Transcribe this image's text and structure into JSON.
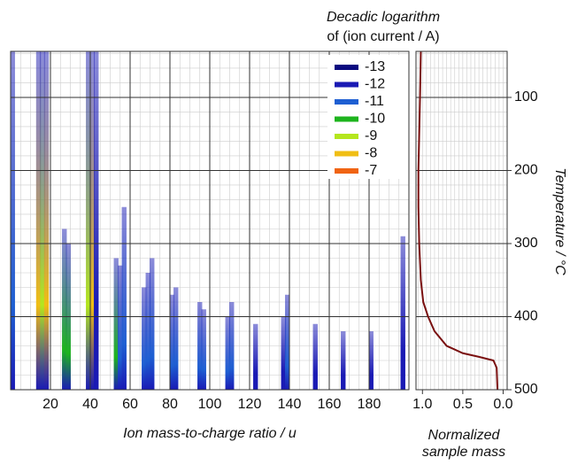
{
  "chart_data": [
    {
      "type": "heatmap",
      "title": [
        "Decadic logarithm",
        "of (ion current / A)"
      ],
      "x_label": "Ion mass-to-charge ratio / u",
      "y_label": "Temperature / °C",
      "xlim": [
        0,
        200
      ],
      "xticks": [
        20,
        40,
        60,
        80,
        100,
        120,
        140,
        160,
        180
      ],
      "ylim": [
        37,
        500
      ],
      "yticks": [
        100,
        200,
        300,
        400,
        500
      ],
      "grid": true,
      "legend": {
        "levels": [
          -13,
          -12,
          -11,
          -10,
          -9,
          -8,
          -7
        ],
        "colors": [
          "#0a0a80",
          "#1a1ab4",
          "#1e5fd2",
          "#1eb41e",
          "#b4e61e",
          "#f0be14",
          "#f06414"
        ]
      },
      "peaks": {
        "mass": [
          1,
          14,
          16,
          18,
          27,
          29,
          39,
          41,
          43,
          53,
          55,
          57,
          67,
          69,
          71,
          81,
          83,
          95,
          97,
          109,
          111,
          123,
          137,
          139,
          153,
          167,
          181,
          197
        ],
        "start": [
          37,
          37,
          37,
          37,
          280,
          300,
          37,
          37,
          37,
          320,
          330,
          250,
          360,
          340,
          320,
          370,
          360,
          380,
          390,
          400,
          380,
          410,
          400,
          370,
          410,
          420,
          420,
          290
        ],
        "level": [
          -11,
          -8,
          -9,
          -8,
          -10,
          -10,
          -9,
          -8,
          -12,
          -10,
          -11,
          -11,
          -11,
          -11,
          -11,
          -11,
          -11,
          -11,
          -11,
          -11,
          -11,
          -12,
          -12,
          -11,
          -12,
          -12,
          -12,
          -12
        ]
      }
    },
    {
      "type": "line",
      "x_label": [
        "Normalized",
        "sample mass"
      ],
      "xlim": [
        1.08,
        -0.05
      ],
      "xticks": [
        {
          "value": 1,
          "label": "1.0"
        },
        {
          "value": 0.5,
          "label": "0.5"
        },
        {
          "value": 0,
          "label": "0.0"
        }
      ],
      "series": [
        {
          "color": "#7a1010",
          "x": [
            1.02,
            1.03,
            1.05,
            1.05,
            1.04,
            1.02,
            0.99,
            0.93,
            0.85,
            0.7,
            0.5,
            0.3,
            0.12,
            0.08,
            0.07
          ],
          "y": [
            37,
            100,
            200,
            250,
            300,
            350,
            380,
            400,
            420,
            440,
            450,
            455,
            460,
            470,
            500
          ]
        }
      ]
    }
  ]
}
